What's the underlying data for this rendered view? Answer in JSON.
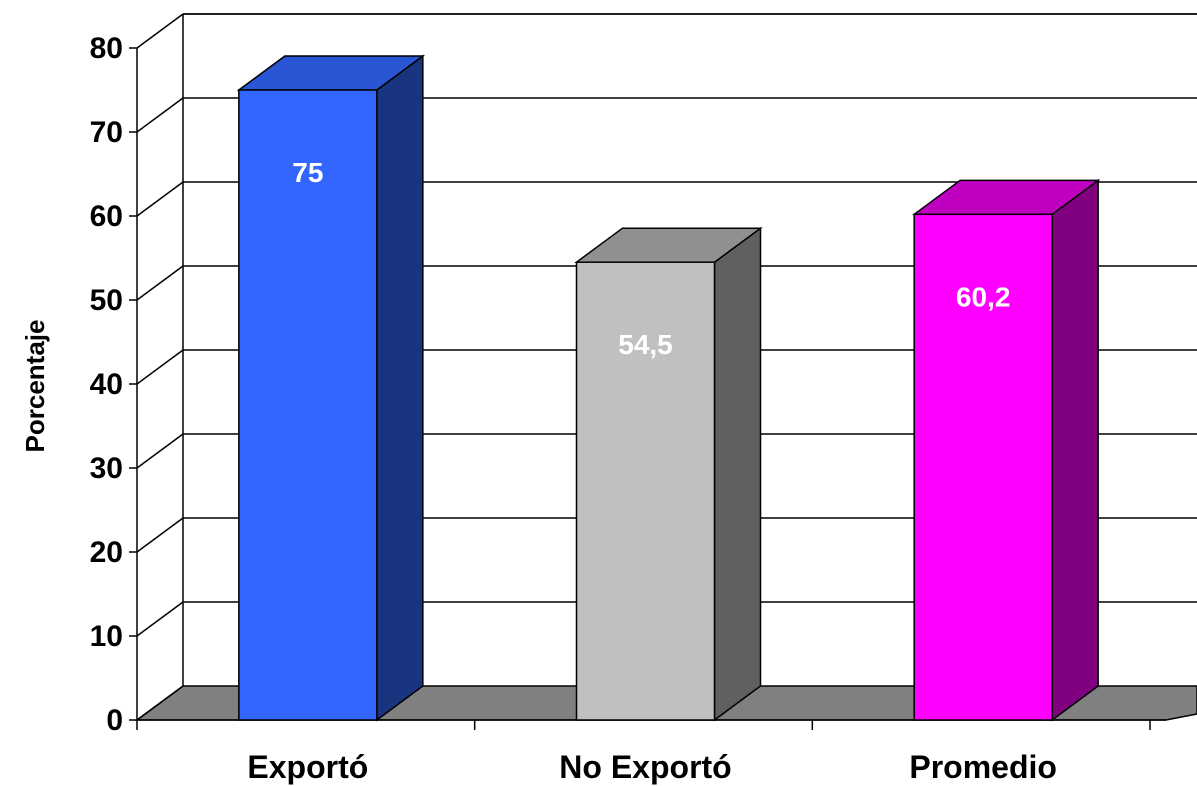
{
  "chart_data": {
    "type": "bar",
    "categories": [
      "Exportó",
      "No Exportó",
      "Promedio"
    ],
    "values": [
      75,
      54.5,
      60.2
    ],
    "data_labels": [
      "75",
      "54,5",
      "60,2"
    ],
    "ylabel": "Porcentaje",
    "xlabel": "",
    "ylim": [
      0,
      80
    ],
    "yticks": [
      0,
      10,
      20,
      30,
      40,
      50,
      60,
      70,
      80
    ],
    "grid": true,
    "three_d": true,
    "colors": {
      "bars": [
        {
          "front": "#3366ff",
          "side": "#1a3580",
          "top": "#2a55d5"
        },
        {
          "front": "#c0c0c0",
          "side": "#606060",
          "top": "#909090"
        },
        {
          "front": "#ff00ff",
          "side": "#800080",
          "top": "#c000c0"
        }
      ],
      "floor": "#808080",
      "grid": "#000000"
    }
  }
}
